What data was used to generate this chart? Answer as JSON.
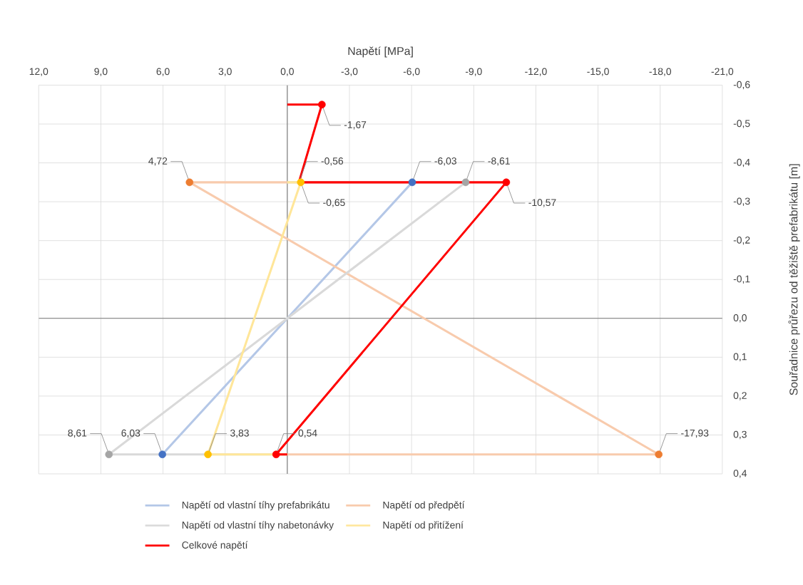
{
  "chart_data": {
    "type": "line",
    "xlabel": "Napětí [MPa]",
    "ylabel": "Souřadnice průřezu od těžiště prefabrikátu [m]",
    "xlim": [
      12,
      -21
    ],
    "ylim": [
      0.4,
      -0.6
    ],
    "xticks": [
      {
        "value": 12,
        "label": "12,0"
      },
      {
        "value": 9,
        "label": "9,0"
      },
      {
        "value": 6,
        "label": "6,0"
      },
      {
        "value": 3,
        "label": "3,0"
      },
      {
        "value": 0,
        "label": "0,0"
      },
      {
        "value": -3,
        "label": "-3,0"
      },
      {
        "value": -6,
        "label": "-6,0"
      },
      {
        "value": -9,
        "label": "-9,0"
      },
      {
        "value": -12,
        "label": "-12,0"
      },
      {
        "value": -15,
        "label": "-15,0"
      },
      {
        "value": -18,
        "label": "-18,0"
      },
      {
        "value": -21,
        "label": "-21,0"
      }
    ],
    "yticks": [
      {
        "value": -0.6,
        "label": "-0,6"
      },
      {
        "value": -0.5,
        "label": "-0,5"
      },
      {
        "value": -0.4,
        "label": "-0,4"
      },
      {
        "value": -0.3,
        "label": "-0,3"
      },
      {
        "value": -0.2,
        "label": "-0,2"
      },
      {
        "value": -0.1,
        "label": "-0,1"
      },
      {
        "value": 0,
        "label": "0,0"
      },
      {
        "value": 0.1,
        "label": "0,1"
      },
      {
        "value": 0.2,
        "label": "0,2"
      },
      {
        "value": 0.3,
        "label": "0,3"
      },
      {
        "value": 0.4,
        "label": "0,4"
      }
    ],
    "grid": true,
    "legend": "bottom",
    "series": [
      {
        "name": "Napětí od vlastní tíhy prefabrikátu",
        "color": "#b4c7e7",
        "x": [
          -6.03,
          6.03
        ],
        "values": [
          -0.35,
          0.35
        ]
      },
      {
        "name": "Napětí od předpětí",
        "color": "#f8cbad",
        "x": [
          0,
          4.72,
          -17.93,
          0
        ],
        "values": [
          -0.35,
          -0.35,
          0.35,
          0.35
        ]
      },
      {
        "name": "Napětí od vlastní tíhy nabetonávky",
        "color": "#d9d9d9",
        "x": [
          0,
          -8.61,
          8.61,
          0
        ],
        "values": [
          -0.35,
          -0.35,
          0.35,
          0.35
        ]
      },
      {
        "name": "Napětí od přitížení",
        "color": "#ffe699",
        "x": [
          0,
          -0.65,
          3.83,
          0
        ],
        "values": [
          -0.35,
          -0.35,
          0.35,
          0.35
        ]
      },
      {
        "name": "Celkové napětí",
        "color": "#ff0000",
        "x": [
          0,
          -1.67,
          -0.56,
          -10.57,
          0.54,
          0
        ],
        "values": [
          -0.55,
          -0.55,
          -0.35,
          -0.35,
          0.35,
          0.35
        ]
      },
      {
        "type": "scatter",
        "marker": "circle",
        "color": "#4472c4",
        "x": [
          -6.03,
          6.03
        ],
        "values": [
          -0.35,
          0.35
        ]
      },
      {
        "type": "scatter",
        "marker": "circle",
        "color": "#ed7d31",
        "x": [
          4.72,
          -17.93
        ],
        "values": [
          -0.35,
          0.35
        ]
      },
      {
        "type": "scatter",
        "marker": "circle",
        "color": "#a5a5a5",
        "x": [
          -8.61,
          8.61
        ],
        "values": [
          -0.35,
          0.35
        ]
      },
      {
        "type": "scatter",
        "marker": "circle",
        "color": "#ffc000",
        "x": [
          -0.65,
          3.83
        ],
        "values": [
          -0.35,
          0.35
        ]
      },
      {
        "type": "scatter",
        "marker": "circle",
        "color": "#ff0000",
        "x": [
          -1.67,
          -10.57,
          0.54
        ],
        "values": [
          -0.55,
          -0.35,
          0.35
        ]
      }
    ],
    "annotations": [
      {
        "text": "-1,67",
        "x": -1.67,
        "y": -0.55
      },
      {
        "text": "-0,56",
        "x": -0.56,
        "y": -0.35
      },
      {
        "text": "-0,65",
        "x": -0.65,
        "y": -0.35
      },
      {
        "text": "-6,03",
        "x": -6.03,
        "y": -0.35
      },
      {
        "text": "-8,61",
        "x": -8.61,
        "y": -0.35
      },
      {
        "text": "-10,57",
        "x": -10.57,
        "y": -0.35
      },
      {
        "text": "4,72",
        "x": 4.72,
        "y": -0.35
      },
      {
        "text": "6,03",
        "x": 6.03,
        "y": 0.35
      },
      {
        "text": "8,61",
        "x": 8.61,
        "y": 0.35
      },
      {
        "text": "3,83",
        "x": 3.83,
        "y": 0.35
      },
      {
        "text": "0,54",
        "x": 0.54,
        "y": 0.35
      },
      {
        "text": "-17,93",
        "x": -17.93,
        "y": 0.35
      }
    ]
  }
}
